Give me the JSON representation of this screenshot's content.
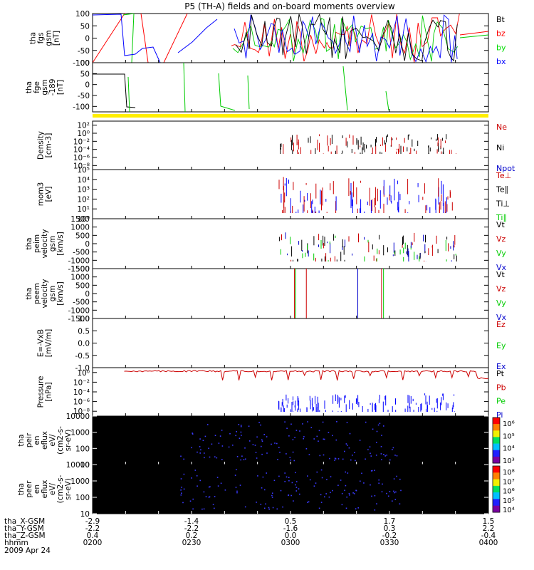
{
  "chart_data": {
    "type": "line",
    "title": "P5 (TH-A) fields and on-board moments overview",
    "panels": [
      {
        "id": "fgs",
        "ylabel": [
          "tha",
          "fgs",
          "gsm",
          "[nT]"
        ],
        "ylim": [
          -100,
          100
        ],
        "yscale": "linear",
        "yticks": [
          "100",
          "50",
          "0",
          "-50",
          "-100"
        ],
        "yticks_values": [
          100,
          50,
          0,
          -50,
          -100
        ],
        "legend": [
          {
            "label": "Bt",
            "color": "#000000"
          },
          {
            "label": "bz",
            "color": "#ff0000"
          },
          {
            "label": "by",
            "color": "#00dd00"
          },
          {
            "label": "bx",
            "color": "#0000ff"
          }
        ]
      },
      {
        "id": "fge",
        "ylabel": [
          "tha",
          "fge",
          "gsm",
          "-189",
          "[nT]"
        ],
        "ylim": [
          -125,
          100
        ],
        "yscale": "linear",
        "yticks": [
          "100",
          "50",
          "0",
          "-50",
          "-100"
        ],
        "yticks_values": [
          100,
          50,
          0,
          -50,
          -100
        ],
        "legend": []
      },
      {
        "id": "density",
        "ylabel": [
          "Density",
          "[cm-3]"
        ],
        "ylim": [
          -9,
          3
        ],
        "yscale": "log",
        "yticks": [
          "10²",
          "10⁰",
          "10⁻²",
          "10⁻⁴",
          "10⁻⁶",
          "10⁻⁸"
        ],
        "yticks_values": [
          2,
          0,
          -2,
          -4,
          -6,
          -8
        ],
        "legend": [
          {
            "label": "Ne",
            "color": "#cc0000"
          },
          {
            "label": "Ni",
            "color": "#000000"
          },
          {
            "label": "Npot",
            "color": "#0000cc"
          }
        ]
      },
      {
        "id": "temp",
        "ylabel": [
          "mom3",
          "[eV]"
        ],
        "ylim": [
          0,
          5
        ],
        "yscale": "log",
        "yticks": [
          "10⁵",
          "10⁴",
          "10³",
          "10²",
          "10¹",
          "10⁰"
        ],
        "yticks_values": [
          5,
          4,
          3,
          2,
          1,
          0
        ],
        "legend": [
          {
            "label": "Te⊥",
            "color": "#cc0000"
          },
          {
            "label": "Te∥",
            "color": "#000000"
          },
          {
            "label": "Ti⊥",
            "color": "#000000"
          },
          {
            "label": "Ti∥",
            "color": "#00cc00"
          }
        ]
      },
      {
        "id": "peim",
        "ylabel": [
          "tha",
          "peim",
          "velocity",
          "gsm",
          "[km/s]"
        ],
        "ylim": [
          -1500,
          1500
        ],
        "yscale": "linear",
        "yticks": [
          "1500",
          "1000",
          "500",
          "0",
          "-500",
          "-1000",
          "-1500"
        ],
        "yticks_values": [
          1500,
          1000,
          500,
          0,
          -500,
          -1000,
          -1500
        ],
        "legend": [
          {
            "label": "Vt",
            "color": "#000000"
          },
          {
            "label": "Vz",
            "color": "#cc0000"
          },
          {
            "label": "Vy",
            "color": "#00cc00"
          },
          {
            "label": "Vx",
            "color": "#0000cc"
          }
        ]
      },
      {
        "id": "peem",
        "ylabel": [
          "tha",
          "peem",
          "velocity",
          "gsm",
          "[km/s]"
        ],
        "ylim": [
          -1500,
          1500
        ],
        "yscale": "linear",
        "yticks": [
          "1500",
          "1000",
          "500",
          "0",
          "-500",
          "-1000",
          "-1500"
        ],
        "yticks_values": [
          1500,
          1000,
          500,
          0,
          -500,
          -1000,
          -1500
        ],
        "legend": [
          {
            "label": "Vt",
            "color": "#000000"
          },
          {
            "label": "Vz",
            "color": "#cc0000"
          },
          {
            "label": "Vy",
            "color": "#00cc00"
          },
          {
            "label": "Vx",
            "color": "#0000cc"
          }
        ]
      },
      {
        "id": "efield",
        "ylabel": [
          "E=-VxB",
          "[mV/m]"
        ],
        "ylim": [
          -1,
          1
        ],
        "yscale": "linear",
        "yticks": [
          "1.0",
          "0.5",
          "0.0",
          "-0.5",
          "-1.0"
        ],
        "yticks_values": [
          1,
          0.5,
          0,
          -0.5,
          -1
        ],
        "legend": [
          {
            "label": "Ez",
            "color": "#cc0000"
          },
          {
            "label": "Ey",
            "color": "#00cc00"
          },
          {
            "label": "Ex",
            "color": "#0000cc"
          }
        ]
      },
      {
        "id": "pressure",
        "ylabel": [
          "Pressure",
          "[nPa]"
        ],
        "ylim": [
          -9,
          1
        ],
        "yscale": "log",
        "yticks": [
          "10⁰",
          "10⁻²",
          "10⁻⁴",
          "10⁻⁶",
          "10⁻⁸"
        ],
        "yticks_values": [
          0,
          -2,
          -4,
          -6,
          -8
        ],
        "legend": [
          {
            "label": "Pt",
            "color": "#000000"
          },
          {
            "label": "Pb",
            "color": "#cc0000"
          },
          {
            "label": "Pe",
            "color": "#00cc00"
          },
          {
            "label": "Pi",
            "color": "#0000cc"
          }
        ]
      },
      {
        "id": "peir",
        "ylabel": [
          "tha",
          "peir",
          "en",
          "eflux",
          "eV/",
          "(cm2-s-",
          "sr-eV)"
        ],
        "ylim": [
          1,
          4
        ],
        "yscale": "log",
        "yticks": [
          "10000",
          "1000",
          "100",
          "10"
        ],
        "yticks_values": [
          4,
          3,
          2,
          1
        ],
        "colorbar_ticks": [
          "10⁶",
          "10⁵",
          "10⁴",
          "10³"
        ]
      },
      {
        "id": "peer",
        "ylabel": [
          "tha",
          "peer",
          "en",
          "eflux",
          "eV/",
          "(cm2-s-",
          "sr-eV)"
        ],
        "ylim": [
          1,
          4
        ],
        "yscale": "log",
        "yticks": [
          "10000",
          "1000",
          "100",
          "10"
        ],
        "yticks_values": [
          4,
          3,
          2,
          1
        ],
        "colorbar_ticks": [
          "10⁸",
          "10⁷",
          "10⁶",
          "10⁵",
          "10⁴"
        ]
      }
    ],
    "xaxis": {
      "rows": [
        {
          "label": "tha_X-GSM",
          "values": [
            "-2.9",
            "-1.4",
            "0.5",
            "1.7",
            "1.5"
          ]
        },
        {
          "label": "tha_Y-GSM",
          "values": [
            "-2.2",
            "-2.2",
            "-1.6",
            "0.3",
            "2.2"
          ]
        },
        {
          "label": "tha_Z-GSM",
          "values": [
            "0.4",
            "0.2",
            "0.0",
            "-0.2",
            "-0.4"
          ]
        },
        {
          "label": "hhmm",
          "values": [
            "0200",
            "0230",
            "0300",
            "0330",
            "0400"
          ]
        }
      ],
      "date": "2009 Apr 24"
    }
  }
}
